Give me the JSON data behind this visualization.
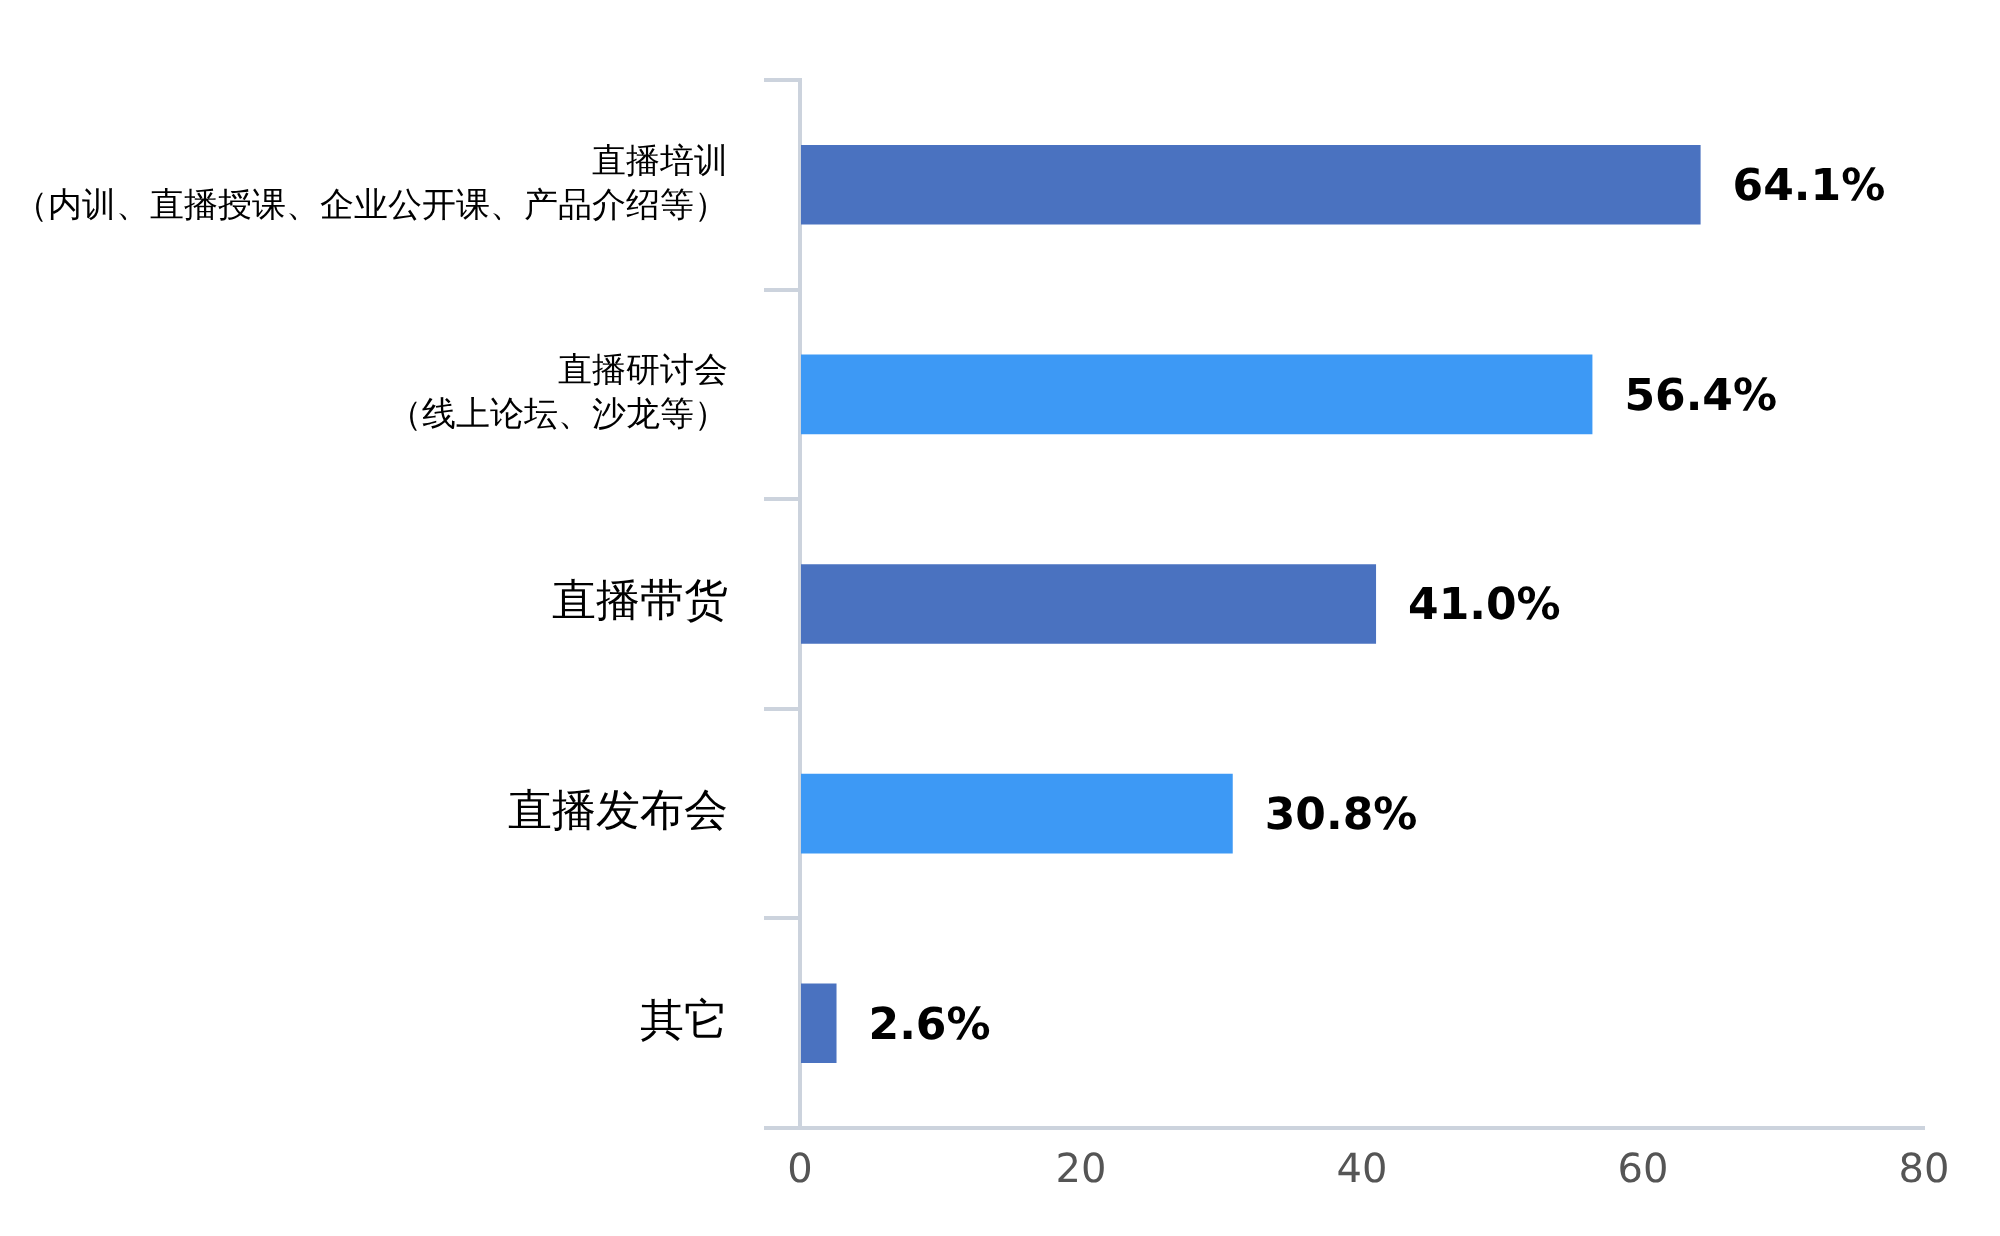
{
  "chart_data": {
    "type": "bar",
    "orientation": "horizontal",
    "categories": [
      "直播培训（内训、直播授课、企业公开课、产品介绍等）",
      "直播研讨会（线上论坛、沙龙等）",
      "直播带货",
      "直播发布会",
      "其它"
    ],
    "values": [
      64.1,
      56.4,
      41.0,
      30.8,
      2.6
    ],
    "colors": [
      "#4a72c0",
      "#3d99f5",
      "#4a72c0",
      "#3d99f5",
      "#4a72c0"
    ],
    "value_labels": [
      "64.1%",
      "56.4%",
      "41.0%",
      "30.8%",
      "2.6%"
    ],
    "xlim": [
      0,
      80
    ],
    "xticks": [
      0,
      20,
      40,
      60,
      80
    ],
    "grid": false,
    "legend": false
  }
}
